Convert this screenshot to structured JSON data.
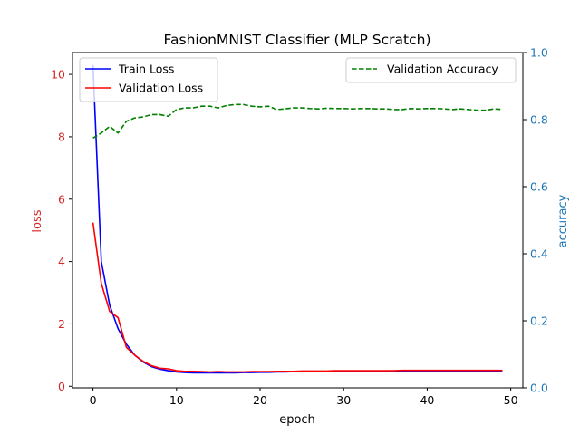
{
  "chart_data": {
    "type": "line",
    "title": "FashionMNIST Classifier (MLP Scratch)",
    "xlabel": "epoch",
    "ylabel_left": "loss",
    "ylabel_right": "accuracy",
    "xlim": [
      -2.45,
      51.45
    ],
    "ylim_left": [
      -0.05,
      10.7
    ],
    "ylim_right": [
      0.0,
      1.0
    ],
    "x_ticks": [
      0,
      10,
      20,
      30,
      40,
      50
    ],
    "y_left_ticks": [
      0,
      2,
      4,
      6,
      8,
      10
    ],
    "y_right_ticks": [
      0.0,
      0.2,
      0.4,
      0.6,
      0.8,
      1.0
    ],
    "y_right_tick_labels": [
      "0.0",
      "0.2",
      "0.4",
      "0.6",
      "0.8",
      "1.0"
    ],
    "grid": false,
    "left_axis_color": "#d62728",
    "right_axis_color": "#1f77b4",
    "legend_left": {
      "placement": "top-left",
      "entries": [
        {
          "label": "Train Loss",
          "color": "#0000ff",
          "style": "solid"
        },
        {
          "label": "Validation Loss",
          "color": "#ff0000",
          "style": "solid"
        }
      ]
    },
    "legend_right": {
      "placement": "top-right",
      "entries": [
        {
          "label": "Validation Accuracy",
          "color": "#008000",
          "style": "dashed"
        }
      ]
    },
    "series": [
      {
        "name": "Train Loss",
        "axis": "left",
        "color": "#0000ff",
        "style": "solid",
        "x": [
          0,
          1,
          2,
          3,
          4,
          5,
          6,
          7,
          8,
          9,
          10,
          11,
          12,
          13,
          14,
          15,
          16,
          17,
          18,
          19,
          20,
          21,
          22,
          23,
          24,
          25,
          26,
          27,
          28,
          29,
          30,
          31,
          32,
          33,
          34,
          35,
          36,
          37,
          38,
          39,
          40,
          41,
          42,
          43,
          44,
          45,
          46,
          47,
          48,
          49
        ],
        "values": [
          10.3,
          4.0,
          2.6,
          1.85,
          1.35,
          1.0,
          0.78,
          0.63,
          0.55,
          0.5,
          0.46,
          0.44,
          0.43,
          0.43,
          0.43,
          0.43,
          0.43,
          0.43,
          0.44,
          0.44,
          0.45,
          0.45,
          0.46,
          0.46,
          0.47,
          0.47,
          0.47,
          0.47,
          0.48,
          0.48,
          0.48,
          0.48,
          0.48,
          0.48,
          0.48,
          0.49,
          0.49,
          0.49,
          0.49,
          0.49,
          0.49,
          0.49,
          0.49,
          0.49,
          0.49,
          0.49,
          0.49,
          0.49,
          0.49,
          0.49
        ]
      },
      {
        "name": "Validation Loss",
        "axis": "left",
        "color": "#ff0000",
        "style": "solid",
        "x": [
          0,
          1,
          2,
          3,
          4,
          5,
          6,
          7,
          8,
          9,
          10,
          11,
          12,
          13,
          14,
          15,
          16,
          17,
          18,
          19,
          20,
          21,
          22,
          23,
          24,
          25,
          26,
          27,
          28,
          29,
          30,
          31,
          32,
          33,
          34,
          35,
          36,
          37,
          38,
          39,
          40,
          41,
          42,
          43,
          44,
          45,
          46,
          47,
          48,
          49
        ],
        "values": [
          5.25,
          3.3,
          2.4,
          2.2,
          1.25,
          1.0,
          0.8,
          0.66,
          0.58,
          0.56,
          0.5,
          0.48,
          0.48,
          0.47,
          0.46,
          0.47,
          0.46,
          0.46,
          0.46,
          0.47,
          0.47,
          0.47,
          0.48,
          0.48,
          0.48,
          0.49,
          0.49,
          0.49,
          0.49,
          0.5,
          0.5,
          0.5,
          0.5,
          0.5,
          0.5,
          0.5,
          0.5,
          0.51,
          0.51,
          0.51,
          0.51,
          0.51,
          0.51,
          0.51,
          0.51,
          0.51,
          0.51,
          0.51,
          0.51,
          0.51
        ]
      },
      {
        "name": "Validation Accuracy",
        "axis": "right",
        "color": "#008000",
        "style": "dashed",
        "x": [
          0,
          1,
          2,
          3,
          4,
          5,
          6,
          7,
          8,
          9,
          10,
          11,
          12,
          13,
          14,
          15,
          16,
          17,
          18,
          19,
          20,
          21,
          22,
          23,
          24,
          25,
          26,
          27,
          28,
          29,
          30,
          31,
          32,
          33,
          34,
          35,
          36,
          37,
          38,
          39,
          40,
          41,
          42,
          43,
          44,
          45,
          46,
          47,
          48,
          49
        ],
        "values": [
          0.745,
          0.76,
          0.78,
          0.76,
          0.795,
          0.805,
          0.808,
          0.815,
          0.815,
          0.81,
          0.83,
          0.835,
          0.835,
          0.84,
          0.84,
          0.835,
          0.842,
          0.845,
          0.845,
          0.84,
          0.838,
          0.84,
          0.83,
          0.832,
          0.835,
          0.835,
          0.833,
          0.832,
          0.834,
          0.833,
          0.833,
          0.832,
          0.833,
          0.833,
          0.832,
          0.832,
          0.83,
          0.83,
          0.833,
          0.832,
          0.833,
          0.833,
          0.832,
          0.83,
          0.832,
          0.83,
          0.828,
          0.828,
          0.832,
          0.83
        ]
      }
    ]
  }
}
